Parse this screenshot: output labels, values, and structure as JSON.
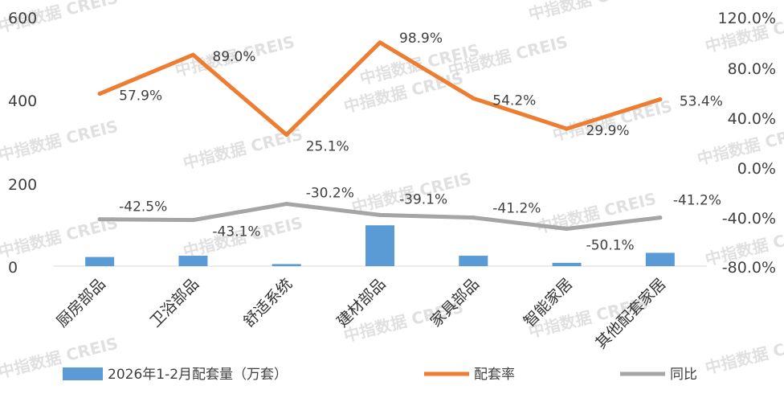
{
  "chart_data": {
    "type": "bar",
    "categories": [
      "厨房部品",
      "卫浴部品",
      "舒适系统",
      "建材部品",
      "家具部品",
      "智能家居",
      "其他配套家居"
    ],
    "series": [
      {
        "name": "2026年1-2月配套量（万套）",
        "type": "bar",
        "axis": "left",
        "values": [
          22,
          25,
          5,
          98,
          25,
          8,
          32
        ],
        "color": "#5b9bd5"
      },
      {
        "name": "配套率",
        "type": "line",
        "axis": "right",
        "values": [
          57.9,
          89.0,
          25.1,
          98.9,
          54.2,
          29.9,
          53.4
        ],
        "labels": [
          "57.9%",
          "89.0%",
          "25.1%",
          "98.9%",
          "54.2%",
          "29.9%",
          "53.4%"
        ],
        "color": "#ed7d31"
      },
      {
        "name": "同比",
        "type": "line",
        "axis": "right",
        "values": [
          -42.5,
          -43.1,
          -30.2,
          -39.1,
          -41.2,
          -50.1,
          -41.2
        ],
        "labels": [
          "-42.5%",
          "-43.1%",
          "-30.2%",
          "-39.1%",
          "-41.2%",
          "-50.1%",
          "-41.2%"
        ],
        "color": "#a5a5a5"
      }
    ],
    "y_left": {
      "ylim": [
        0,
        600
      ],
      "ticks": [
        "0",
        "200",
        "400",
        "600"
      ]
    },
    "y_right": {
      "ylim": [
        -80,
        120
      ],
      "ticks": [
        "-80.0%",
        "-40.0%",
        "0.0%",
        "40.0%",
        "80.0%",
        "120.0%"
      ]
    },
    "grid": false,
    "legend": "bottom",
    "watermark": "中指数据 CREIS"
  }
}
